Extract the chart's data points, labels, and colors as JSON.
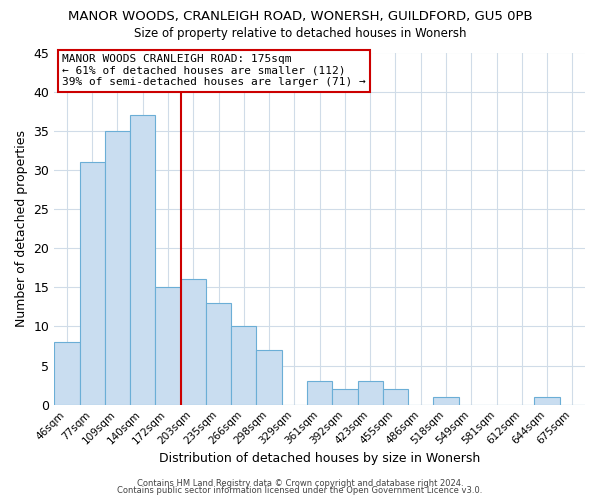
{
  "title": "MANOR WOODS, CRANLEIGH ROAD, WONERSH, GUILDFORD, GU5 0PB",
  "subtitle": "Size of property relative to detached houses in Wonersh",
  "xlabel": "Distribution of detached houses by size in Wonersh",
  "ylabel": "Number of detached properties",
  "bin_labels": [
    "46sqm",
    "77sqm",
    "109sqm",
    "140sqm",
    "172sqm",
    "203sqm",
    "235sqm",
    "266sqm",
    "298sqm",
    "329sqm",
    "361sqm",
    "392sqm",
    "423sqm",
    "455sqm",
    "486sqm",
    "518sqm",
    "549sqm",
    "581sqm",
    "612sqm",
    "644sqm",
    "675sqm"
  ],
  "bar_values": [
    8,
    31,
    35,
    37,
    15,
    16,
    13,
    10,
    7,
    0,
    3,
    2,
    3,
    2,
    0,
    1,
    0,
    0,
    0,
    1,
    0
  ],
  "bar_color": "#c9ddf0",
  "bar_edge_color": "#6baed6",
  "vline_color": "#cc0000",
  "ylim": [
    0,
    45
  ],
  "yticks": [
    0,
    5,
    10,
    15,
    20,
    25,
    30,
    35,
    40,
    45
  ],
  "annotation_title": "MANOR WOODS CRANLEIGH ROAD: 175sqm",
  "annotation_line1": "← 61% of detached houses are smaller (112)",
  "annotation_line2": "39% of semi-detached houses are larger (71) →",
  "annotation_box_color": "#ffffff",
  "annotation_box_edge": "#cc0000",
  "footer1": "Contains HM Land Registry data © Crown copyright and database right 2024.",
  "footer2": "Contains public sector information licensed under the Open Government Licence v3.0.",
  "bg_color": "#ffffff",
  "grid_color": "#d0dce8"
}
